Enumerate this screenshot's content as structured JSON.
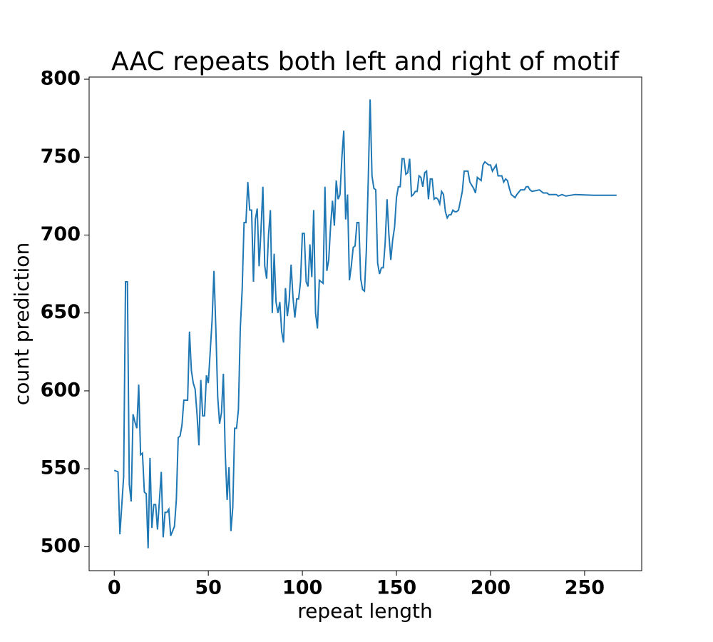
{
  "chart_data": {
    "type": "line",
    "title": "AAC repeats both left and right of motif",
    "xlabel": "repeat length",
    "ylabel": "count prediction",
    "xlim": [
      -13.35,
      280.35
    ],
    "ylim": [
      484.6,
      801.4
    ],
    "xticks": [
      0,
      50,
      100,
      150,
      200,
      250
    ],
    "yticks": [
      500,
      550,
      600,
      650,
      700,
      750,
      800
    ],
    "series": [
      {
        "color": "#1f77b4",
        "x": [
          0,
          2,
          3,
          5,
          6,
          7,
          8,
          9,
          10,
          11,
          12,
          13,
          14,
          15,
          16,
          17,
          18,
          19,
          20,
          21,
          22,
          23,
          25,
          26,
          27,
          28,
          29,
          30,
          32,
          33,
          34,
          35,
          36,
          37,
          39,
          40,
          41,
          42,
          43,
          44,
          45,
          46,
          47,
          48,
          49,
          50,
          51,
          52,
          53,
          54,
          55,
          56,
          57,
          58,
          59,
          60,
          61,
          62,
          63,
          64,
          65,
          66,
          67,
          68,
          69,
          70,
          71,
          72,
          73,
          74,
          75,
          76,
          77,
          78,
          79,
          80,
          81,
          82,
          83,
          84,
          85,
          86,
          87,
          88,
          89,
          90,
          91,
          92,
          93,
          94,
          95,
          96,
          97,
          98,
          99,
          100,
          101,
          102,
          103,
          104,
          105,
          106,
          107,
          108,
          109,
          110,
          111,
          112,
          113,
          114,
          115,
          116,
          117,
          118,
          119,
          120,
          121,
          122,
          123,
          124,
          125,
          126,
          127,
          128,
          129,
          130,
          131,
          132,
          133,
          134,
          135,
          136,
          137,
          138,
          139,
          140,
          141,
          142,
          143,
          144,
          145,
          146,
          147,
          148,
          149,
          150,
          151,
          152,
          153,
          154,
          155,
          156,
          157,
          158,
          159,
          160,
          161,
          162,
          163,
          164,
          165,
          166,
          167,
          168,
          169,
          170,
          171,
          172,
          173,
          174,
          175,
          176,
          177,
          178,
          179,
          180,
          181,
          182,
          183,
          185,
          186,
          188,
          189,
          191,
          192,
          193,
          194,
          195,
          196,
          197,
          198,
          199,
          200,
          201,
          202,
          203,
          204,
          206,
          207,
          208,
          209,
          210,
          211,
          213,
          214,
          216,
          218,
          219,
          220,
          221,
          222,
          226,
          228,
          230,
          231,
          235,
          236,
          238,
          240,
          245,
          255,
          267
        ],
        "values": [
          549,
          548,
          508,
          545,
          670,
          670,
          540,
          529,
          585,
          580,
          576,
          604,
          559,
          560,
          535,
          534,
          499,
          557,
          512,
          527,
          527,
          511,
          548,
          506,
          522,
          522,
          524,
          507,
          513,
          530,
          570,
          571,
          578,
          594,
          594,
          638,
          613,
          605,
          601,
          585,
          565,
          607,
          584,
          584,
          610,
          605,
          625,
          645,
          677,
          640,
          596,
          579,
          586,
          611,
          560,
          530,
          551,
          510,
          525,
          576,
          576,
          588,
          640,
          665,
          708,
          708,
          734,
          716,
          716,
          670,
          710,
          717,
          680,
          703,
          731,
          680,
          672,
          700,
          716,
          650,
          688,
          657,
          650,
          657,
          638,
          631,
          666,
          648,
          658,
          681,
          660,
          647,
          659,
          659,
          670,
          701,
          701,
          670,
          667,
          694,
          673,
          716,
          650,
          640,
          671,
          670,
          669,
          731,
          677,
          684,
          706,
          722,
          706,
          735,
          723,
          726,
          750,
          767,
          710,
          726,
          671,
          680,
          692,
          693,
          708,
          708,
          672,
          665,
          664,
          690,
          735,
          787,
          738,
          730,
          729,
          682,
          675,
          679,
          679,
          695,
          723,
          700,
          684,
          697,
          705,
          724,
          731,
          731,
          749,
          749,
          739,
          740,
          749,
          725,
          726,
          728,
          728,
          738,
          737,
          731,
          740,
          741,
          723,
          736,
          736,
          723,
          724,
          723,
          720,
          728,
          726,
          715,
          711,
          713,
          713,
          716,
          715,
          715,
          716,
          728,
          741,
          741,
          734,
          730,
          727,
          737,
          736,
          735,
          745,
          747,
          746,
          745,
          745,
          741,
          743,
          745,
          738,
          738,
          734,
          736,
          735,
          730,
          726,
          724,
          726,
          729,
          729,
          731,
          731,
          729,
          728,
          729,
          727,
          727,
          726,
          726,
          725,
          726,
          725,
          726,
          725.5,
          725.5
        ]
      }
    ]
  }
}
